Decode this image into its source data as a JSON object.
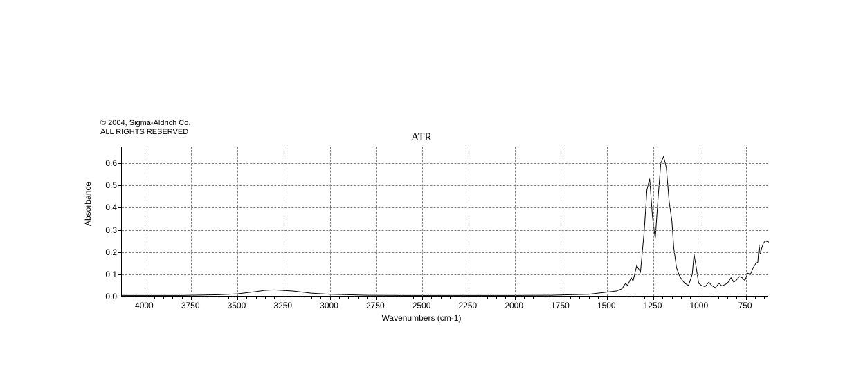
{
  "copyright": {
    "line1": "© 2004, Sigma-Aldrich Co.",
    "line2": "ALL RIGHTS RESERVED"
  },
  "title": "ATR",
  "ylabel": "Absorbance",
  "xlabel": "Wavenumbers (cm-1)",
  "chart": {
    "type": "line",
    "xlim": [
      4125,
      625
    ],
    "ylim": [
      0.0,
      0.675
    ],
    "xtick_major_step": 250,
    "xtick_minor_step": 50,
    "xtick_labels": [
      4000,
      3750,
      3500,
      3250,
      3000,
      2750,
      2500,
      2250,
      2000,
      1750,
      1500,
      1250,
      1000,
      750
    ],
    "ytick_step": 0.1,
    "ytick_labels": [
      "0.0",
      "0.1",
      "0.2",
      "0.3",
      "0.4",
      "0.5",
      "0.6"
    ],
    "grid_color": "#808080",
    "line_color": "#000000",
    "background_color": "#ffffff",
    "line_width": 1,
    "label_fontsize": 12,
    "title_fontsize": 16,
    "spectrum": [
      [
        4125,
        0.005
      ],
      [
        4000,
        0.005
      ],
      [
        3800,
        0.005
      ],
      [
        3600,
        0.008
      ],
      [
        3500,
        0.012
      ],
      [
        3400,
        0.022
      ],
      [
        3350,
        0.028
      ],
      [
        3300,
        0.03
      ],
      [
        3200,
        0.025
      ],
      [
        3100,
        0.015
      ],
      [
        3000,
        0.01
      ],
      [
        2900,
        0.008
      ],
      [
        2800,
        0.006
      ],
      [
        2600,
        0.005
      ],
      [
        2400,
        0.005
      ],
      [
        2200,
        0.005
      ],
      [
        2000,
        0.005
      ],
      [
        1800,
        0.006
      ],
      [
        1700,
        0.008
      ],
      [
        1600,
        0.01
      ],
      [
        1550,
        0.015
      ],
      [
        1500,
        0.02
      ],
      [
        1450,
        0.025
      ],
      [
        1420,
        0.035
      ],
      [
        1400,
        0.06
      ],
      [
        1390,
        0.05
      ],
      [
        1370,
        0.085
      ],
      [
        1360,
        0.07
      ],
      [
        1340,
        0.14
      ],
      [
        1320,
        0.11
      ],
      [
        1300,
        0.29
      ],
      [
        1285,
        0.48
      ],
      [
        1270,
        0.53
      ],
      [
        1255,
        0.36
      ],
      [
        1240,
        0.26
      ],
      [
        1225,
        0.44
      ],
      [
        1210,
        0.6
      ],
      [
        1195,
        0.63
      ],
      [
        1180,
        0.58
      ],
      [
        1165,
        0.43
      ],
      [
        1150,
        0.34
      ],
      [
        1140,
        0.22
      ],
      [
        1125,
        0.13
      ],
      [
        1110,
        0.095
      ],
      [
        1095,
        0.075
      ],
      [
        1080,
        0.06
      ],
      [
        1060,
        0.05
      ],
      [
        1040,
        0.1
      ],
      [
        1030,
        0.19
      ],
      [
        1020,
        0.14
      ],
      [
        1005,
        0.06
      ],
      [
        990,
        0.05
      ],
      [
        970,
        0.045
      ],
      [
        950,
        0.065
      ],
      [
        935,
        0.05
      ],
      [
        915,
        0.04
      ],
      [
        895,
        0.06
      ],
      [
        880,
        0.048
      ],
      [
        860,
        0.055
      ],
      [
        845,
        0.065
      ],
      [
        830,
        0.085
      ],
      [
        815,
        0.065
      ],
      [
        800,
        0.075
      ],
      [
        785,
        0.09
      ],
      [
        770,
        0.085
      ],
      [
        755,
        0.072
      ],
      [
        740,
        0.105
      ],
      [
        725,
        0.1
      ],
      [
        710,
        0.13
      ],
      [
        695,
        0.15
      ],
      [
        685,
        0.155
      ],
      [
        678,
        0.23
      ],
      [
        672,
        0.19
      ],
      [
        665,
        0.215
      ],
      [
        655,
        0.24
      ],
      [
        645,
        0.25
      ],
      [
        635,
        0.248
      ],
      [
        625,
        0.245
      ]
    ]
  }
}
